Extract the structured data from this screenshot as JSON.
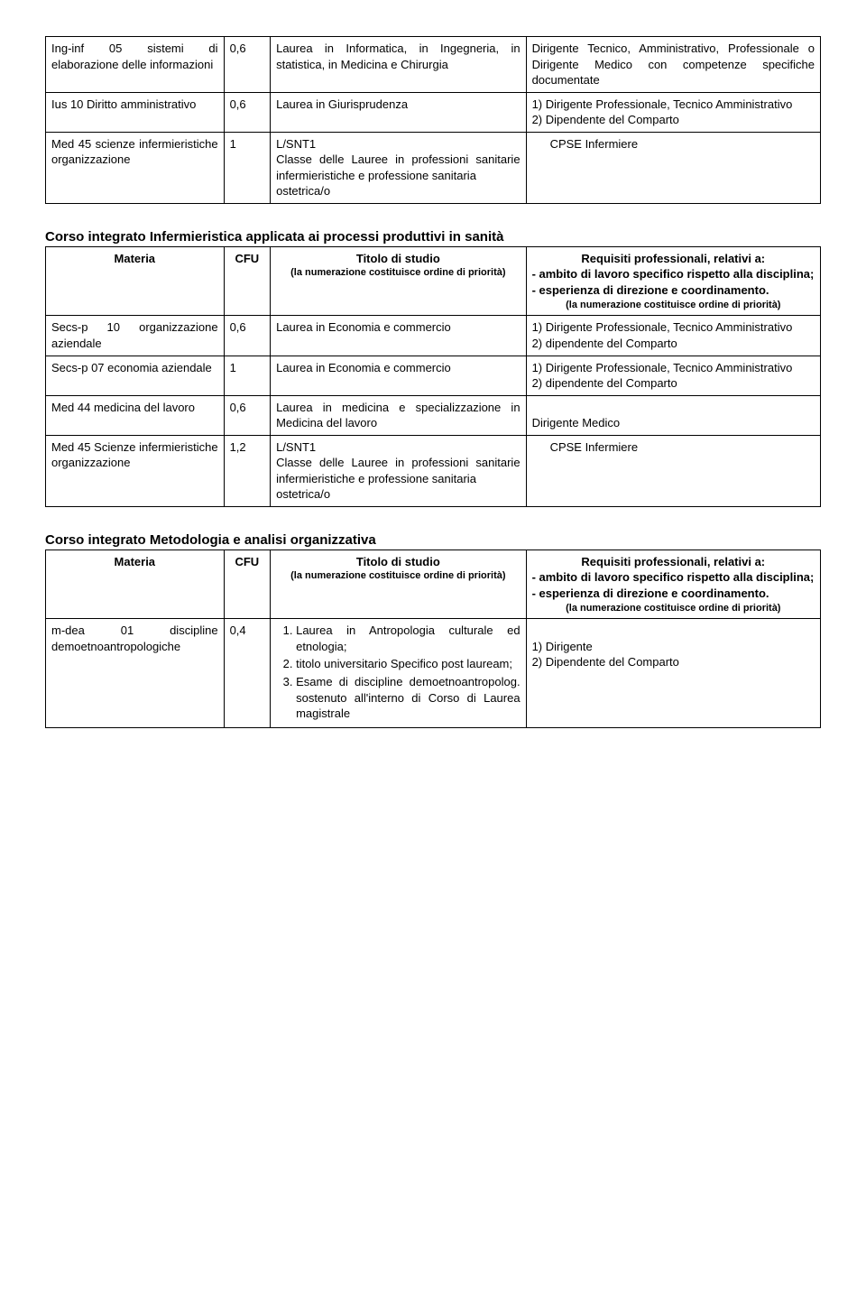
{
  "table1": {
    "rows": [
      {
        "materia": "Ing-inf 05 sistemi di elaborazione delle informazioni",
        "cfu": "0,6",
        "titolo": "Laurea in Informatica, in Ingegneria, in statistica, in Medicina e Chirurgia",
        "req": "Dirigente Tecnico, Amministrativo, Professionale o Dirigente Medico con competenze specifiche documentate"
      },
      {
        "materia": "Ius 10 Diritto amministrativo",
        "cfu": "0,6",
        "titolo": "Laurea in Giurisprudenza",
        "req": "1) Dirigente Professionale, Tecnico Amministrativo\n2) Dipendente del Comparto"
      },
      {
        "materia": "Med 45 scienze infermieristiche organizzazione",
        "cfu": "1",
        "titolo": "L/SNT1\nClasse delle Lauree in professioni sanitarie infermieristiche e professione sanitaria\nostetrica/o",
        "req_indent": "CPSE Infermiere"
      }
    ]
  },
  "course2": {
    "title": "Corso integrato Infermieristica applicata ai processi produttivi in sanità",
    "header": {
      "materia": "Materia",
      "cfu": "CFU",
      "titolo_main": "Titolo di studio",
      "titolo_sub": "(la numerazione costituisce ordine di priorità)",
      "req_main": "Requisiti professionali, relativi a:",
      "req_l1": "- ambito di lavoro specifico rispetto alla disciplina;",
      "req_l2": "- esperienza di direzione e coordinamento.",
      "req_sub": "(la numerazione costituisce ordine di priorità)"
    },
    "rows": [
      {
        "materia": "Secs-p 10 organizzazione aziendale",
        "cfu": "0,6",
        "titolo": "Laurea in Economia e commercio",
        "req": "1) Dirigente Professionale, Tecnico Amministrativo\n2) dipendente del Comparto"
      },
      {
        "materia": "Secs-p 07 economia aziendale",
        "cfu": "1",
        "titolo": "Laurea in Economia e commercio",
        "req": "1) Dirigente Professionale, Tecnico Amministrativo\n2) dipendente del Comparto"
      },
      {
        "materia": "Med 44 medicina del lavoro",
        "cfu": "0,6",
        "titolo": "Laurea in medicina e specializzazione in Medicina del lavoro",
        "req": "\nDirigente Medico"
      },
      {
        "materia": "Med 45 Scienze infermieristiche organizzazione",
        "cfu": "1,2",
        "titolo": "L/SNT1\nClasse delle Lauree in professioni sanitarie infermieristiche e professione sanitaria\nostetrica/o",
        "req_indent": "CPSE Infermiere"
      }
    ]
  },
  "course3": {
    "title": "Corso integrato Metodologia e analisi organizzativa",
    "header": {
      "materia": "Materia",
      "cfu": "CFU",
      "titolo_main": "Titolo di studio",
      "titolo_sub": "(la numerazione costituisce ordine di priorità)",
      "req_main": "Requisiti professionali, relativi a:",
      "req_l1": "- ambito di lavoro specifico rispetto alla disciplina;",
      "req_l2": "- esperienza di direzione e coordinamento.",
      "req_sub": "(la numerazione costituisce ordine di priorità)"
    },
    "rows": [
      {
        "materia": "m-dea 01 discipline demoetnoantropologiche",
        "cfu": "0,4",
        "titolo_list": [
          "Laurea in Antropologia culturale ed etnologia;",
          "titolo universitario Specifico post lauream;",
          "Esame di discipline demoetnoantropolog. sostenuto all'interno di Corso di Laurea magistrale"
        ],
        "req": "\n1) Dirigente\n2) Dipendente del Comparto"
      }
    ]
  }
}
